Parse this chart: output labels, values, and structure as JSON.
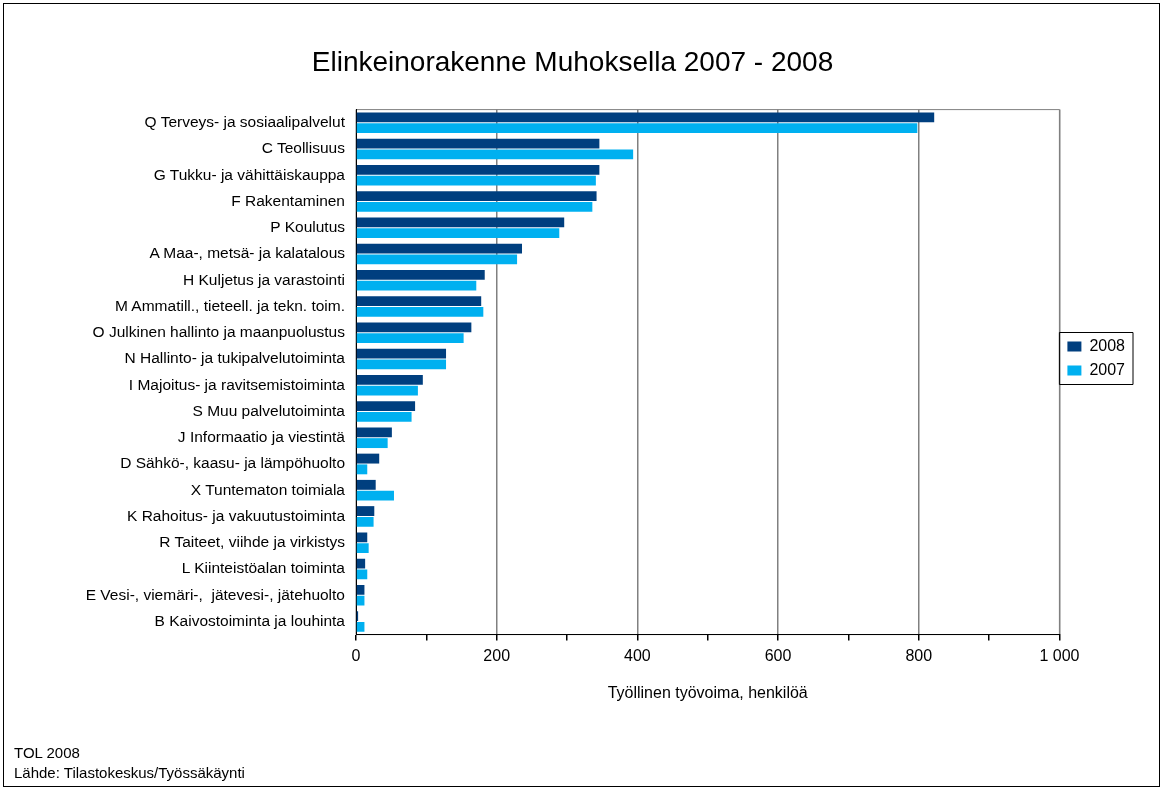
{
  "chart_data": {
    "type": "bar",
    "orientation": "horizontal",
    "title": "Elinkeinorakenne Muhoksella 2007 - 2008",
    "xlabel": "Työllinen työvoima, henkilöä",
    "categories": [
      "Q Terveys- ja sosiaalipalvelut",
      "C Teollisuus",
      "G Tukku- ja vähittäiskauppa",
      "F Rakentaminen",
      "P Koulutus",
      "A Maa-, metsä- ja kalatalous",
      "H Kuljetus ja varastointi",
      "M Ammatill., tieteell. ja tekn. toim.",
      "O Julkinen hallinto ja maanpuolustus",
      "N Hallinto- ja tukipalvelutoiminta",
      "I Majoitus- ja ravitsemistoiminta",
      "S Muu palvelutoiminta",
      "J Informaatio ja viestintä",
      "D Sähkö-, kaasu- ja lämpöhuolto",
      "X Tuntematon toimiala",
      "K Rahoitus- ja vakuutustoiminta",
      "R Taiteet, viihde ja virkistys",
      "L Kiinteistöalan toiminta",
      "E Vesi-, viemäri-,  jätevesi-, jätehuolto",
      "B Kaivostoiminta ja louhinta"
    ],
    "series": [
      {
        "name": "2008",
        "color": "#003f7f",
        "values": [
          822,
          346,
          346,
          342,
          296,
          236,
          183,
          178,
          164,
          128,
          95,
          84,
          51,
          33,
          28,
          26,
          16,
          13,
          12,
          3
        ]
      },
      {
        "name": "2007",
        "color": "#00b0f0",
        "values": [
          798,
          394,
          341,
          336,
          289,
          229,
          171,
          181,
          153,
          128,
          88,
          79,
          45,
          16,
          54,
          25,
          18,
          16,
          12,
          12
        ]
      }
    ],
    "xlim": [
      0,
      1000
    ],
    "xticks": [
      0,
      {
        "value": 100,
        "label": null
      },
      200,
      {
        "value": 300,
        "label": null
      },
      400,
      {
        "value": 500,
        "label": null
      },
      600,
      {
        "value": 700,
        "label": null
      },
      800,
      {
        "value": 900,
        "label": null
      },
      {
        "value": 1000,
        "label": "1 000"
      }
    ],
    "grid": "x",
    "legend": "right",
    "annotations": [
      "TOL 2008",
      "Lähde: Tilastokeskus/Työssäkäynti"
    ]
  }
}
